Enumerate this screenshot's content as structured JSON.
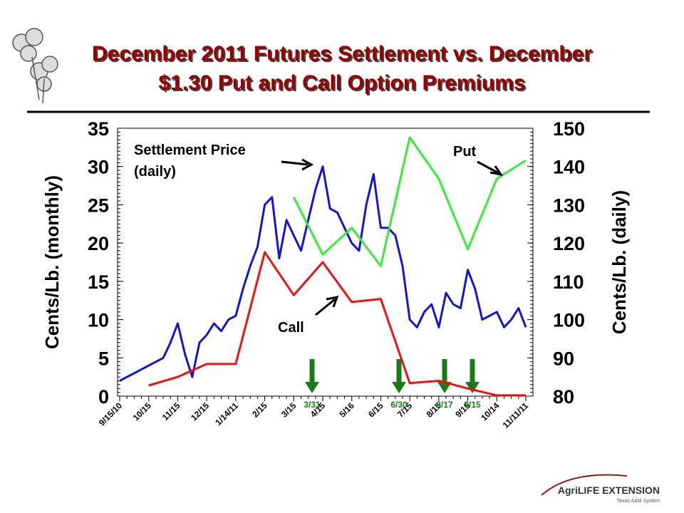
{
  "title": [
    "December 2011 Futures Settlement vs. December",
    "$1.30 Put and Call Option Premiums"
  ],
  "logo": {
    "name": "AgriLIFE EXTENSION",
    "sub": "Texas A&M System"
  },
  "chart_data": {
    "type": "line",
    "y_label": "Cents/Lb. (monthly)",
    "y2_label": "Cents/Lb. (daily)",
    "categories": [
      "9/15/10",
      null,
      null,
      null,
      "10/15",
      null,
      null,
      null,
      "11/15",
      null,
      null,
      null,
      "12/15",
      null,
      null,
      null,
      "1/14/11",
      null,
      null,
      null,
      "2/15",
      null,
      null,
      null,
      "3/15",
      null,
      null,
      null,
      "4/15",
      null,
      null,
      null,
      "5/16",
      null,
      null,
      null,
      "6/15",
      null,
      null,
      null,
      "7/15",
      null,
      null,
      null,
      "8/15",
      null,
      null,
      null,
      "9/15",
      null,
      null,
      null,
      "10/14",
      null,
      null,
      null,
      "11/11/11"
    ],
    "ylim": [
      0,
      35
    ],
    "yticks": [
      0,
      5,
      10,
      15,
      20,
      25,
      30,
      35
    ],
    "y2lim": [
      80,
      150
    ],
    "y2ticks": [
      80,
      90,
      100,
      110,
      120,
      130,
      140,
      150
    ],
    "series": [
      {
        "name": "Settlement Price (daily)",
        "color": "#1414d2",
        "axis": "y2",
        "values": [
          84,
          85,
          86,
          87,
          88,
          89,
          90,
          94,
          99,
          91,
          85,
          94,
          96,
          99,
          97,
          100,
          101,
          108,
          114,
          119,
          130,
          132,
          116,
          126,
          122,
          118,
          126,
          134,
          140,
          129,
          128,
          124,
          120,
          118,
          130,
          138,
          124,
          124,
          122,
          114,
          100,
          98,
          102,
          104,
          98,
          107,
          104,
          103,
          113,
          108,
          100,
          101,
          102,
          98,
          100,
          103,
          98
        ]
      },
      {
        "name": "Put",
        "color": "#33ee33",
        "x": [
          "3/15",
          "4/15",
          "5/16",
          "6/15",
          "7/15",
          "8/15",
          "9/15",
          "10/14",
          "11/11/11"
        ],
        "values": [
          26,
          18.5,
          22,
          17,
          33.8,
          28.4,
          19.2,
          28.4,
          30.8
        ]
      },
      {
        "name": "Call",
        "color": "#ee1111",
        "x": [
          "10/15",
          "11/15",
          "12/15",
          "1/14/11",
          "2/15",
          "3/15",
          "4/15",
          "5/16",
          "6/15",
          "7/15",
          "8/15",
          "9/15",
          "10/14",
          "11/11/11"
        ],
        "values": [
          1.4,
          2.5,
          4.2,
          4.2,
          18.8,
          13.2,
          17.5,
          12.3,
          12.7,
          1.7,
          2.0,
          1.0,
          0.1,
          0.1
        ]
      }
    ],
    "annotations": [
      "Settlement Price",
      "(daily)",
      "Put",
      "Call"
    ],
    "markers": [
      "3/31",
      "6/30",
      "8/17",
      "9/15"
    ],
    "marker_color": "#1a7a1a"
  }
}
